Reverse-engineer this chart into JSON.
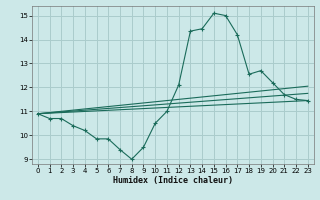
{
  "xlabel": "Humidex (Indice chaleur)",
  "ylabel": "",
  "bg_color": "#cce8e8",
  "grid_color": "#aacccc",
  "line_color": "#1a6b5a",
  "xlim": [
    -0.5,
    23.5
  ],
  "ylim": [
    8.8,
    15.4
  ],
  "xticks": [
    0,
    1,
    2,
    3,
    4,
    5,
    6,
    7,
    8,
    9,
    10,
    11,
    12,
    13,
    14,
    15,
    16,
    17,
    18,
    19,
    20,
    21,
    22,
    23
  ],
  "yticks": [
    9,
    10,
    11,
    12,
    13,
    14,
    15
  ],
  "series1_x": [
    0,
    1,
    2,
    3,
    4,
    5,
    6,
    7,
    8,
    9,
    10,
    11,
    12,
    13,
    14,
    15,
    16,
    17,
    18,
    19,
    20,
    21,
    22,
    23
  ],
  "series1_y": [
    10.9,
    10.7,
    10.7,
    10.4,
    10.2,
    9.85,
    9.85,
    9.4,
    9.0,
    9.5,
    10.5,
    11.0,
    12.1,
    14.35,
    14.45,
    15.1,
    15.0,
    14.2,
    12.55,
    12.7,
    12.2,
    11.7,
    11.5,
    11.45
  ],
  "series2_x": [
    0,
    23
  ],
  "series2_y": [
    10.9,
    11.45
  ],
  "series3_x": [
    0,
    23
  ],
  "series3_y": [
    10.9,
    11.75
  ],
  "series4_x": [
    0,
    23
  ],
  "series4_y": [
    10.9,
    12.05
  ]
}
